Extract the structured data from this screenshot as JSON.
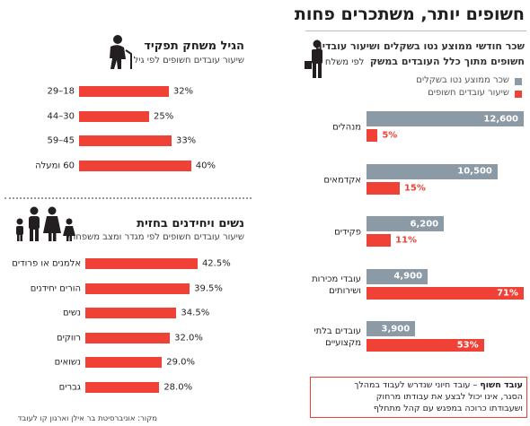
{
  "title": "חשופים יותר, משתכרים פחות",
  "source": "מקור: אוניברסיטת בר אילן וארגון קו לעובד",
  "note": {
    "term": "עובד חשוף",
    "lines": [
      "– עובד חיוני שנדרש לעבוד במהלך",
      "הסגר, אינו יכול לבצע את עבודתו מרחוק",
      "ושעבודתו כרוכה במפגש עם קהל מתחלף"
    ]
  },
  "chart_data": [
    {
      "type": "barh",
      "title": "הגיל משחק תפקיד",
      "subtitle": "שיעור עובדים חשופים לפי גיל",
      "categories": [
        "18–29",
        "30–44",
        "45–59",
        "60 ומעלה"
      ],
      "values": [
        32,
        25,
        33,
        40
      ],
      "value_labels": [
        "32%",
        "25%",
        "33%",
        "40%"
      ],
      "color": "#ef4136"
    },
    {
      "type": "barh",
      "title": "נשים ויחידנים בחזית",
      "subtitle": "שיעור עובדים חשופים לפי מגדר ומצב משפחתי",
      "categories": [
        "אלמנים או פרודים",
        "הורים יחידנים",
        "נשים",
        "רווקים",
        "נשואים",
        "גברים"
      ],
      "values": [
        42.5,
        39.5,
        34.5,
        32.0,
        29.0,
        28.0
      ],
      "value_labels": [
        "42.5%",
        "39.5%",
        "34.5%",
        "32.0%",
        "29.0%",
        "28.0%"
      ],
      "color": "#ef4136"
    },
    {
      "type": "barh-grouped",
      "title": [
        "שכר חודשי ממוצע נטו בשקלים ושיעור עובדים",
        "חשופים מתוך כלל העובדים במשק"
      ],
      "subtitle": "לפי משלח יד",
      "categories": [
        "מנהלים",
        "אקדמאים",
        "פקידים",
        "עובדי מכירות\nושירותים",
        "עובדים בלתי\nמקצועיים"
      ],
      "series": [
        {
          "name": "שכר ממוצע נטו בשקלים",
          "color": "#8c9aa6",
          "values": [
            12600,
            10500,
            6200,
            4900,
            3900
          ],
          "value_labels": [
            "12,600",
            "10,500",
            "6,200",
            "4,900",
            "3,900"
          ]
        },
        {
          "name": "שיעור עובדים חשופים",
          "color": "#ef4136",
          "values": [
            5,
            15,
            11,
            71,
            53
          ],
          "value_labels": [
            "5%",
            "15%",
            "11%",
            "71%",
            "53%"
          ]
        }
      ]
    }
  ]
}
